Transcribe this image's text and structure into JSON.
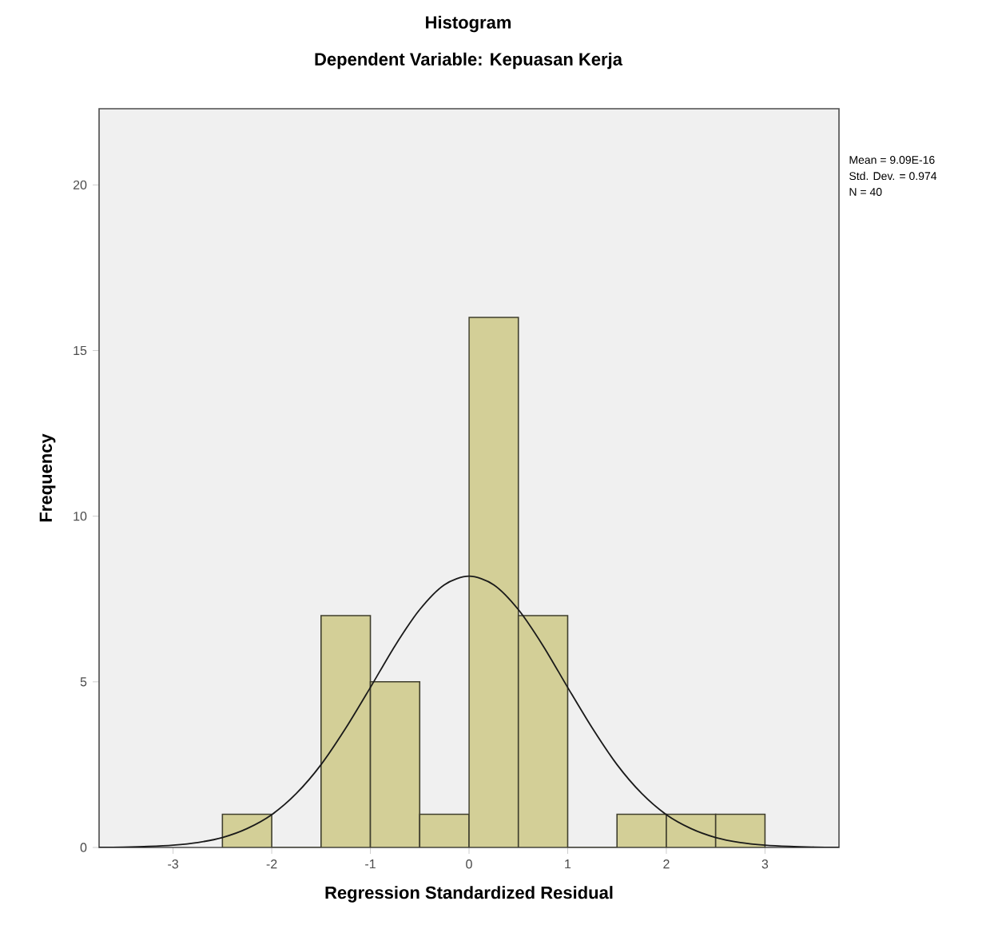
{
  "chart_data": {
    "type": "histogram",
    "title": "Histogram",
    "subtitle": "Dependent Variable: Kepuasan Kerja",
    "xlabel": "Regression Standardized Residual",
    "ylabel": "Frequency",
    "series": [
      {
        "color": "#d3cf97",
        "bins": [
          -2.5,
          -2,
          -1.5,
          -1,
          -0.5,
          0,
          0.5,
          1,
          1.5,
          2,
          2.5,
          3
        ],
        "values": [
          1,
          0,
          7,
          5,
          1,
          16,
          7,
          0,
          1,
          1,
          1
        ]
      },
      {
        "type": "line",
        "color": "#1a1a1a",
        "x": [
          -3.75,
          -3.5,
          -3.25,
          -3,
          -2.75,
          -2.5,
          -2.25,
          -2,
          -1.75,
          -1.5,
          -1.25,
          -1,
          -0.75,
          -0.5,
          -0.25,
          0,
          0.25,
          0.5,
          0.75,
          1,
          1.25,
          1.5,
          1.75,
          2,
          2.25,
          2.5,
          2.75,
          3,
          3.25,
          3.5,
          3.75
        ],
        "values": [
          0,
          0.01,
          0.03,
          0.07,
          0.15,
          0.3,
          0.57,
          0.99,
          1.63,
          2.5,
          3.6,
          4.83,
          6.09,
          7.18,
          7.93,
          8.19,
          7.93,
          7.18,
          6.09,
          4.83,
          3.6,
          2.5,
          1.63,
          0.99,
          0.57,
          0.3,
          0.15,
          0.07,
          0.03,
          0.01,
          0
        ]
      }
    ],
    "xlim": [
      -3.75,
      3.75
    ],
    "ylim": [
      0,
      22.3
    ],
    "xticks": [
      -3,
      -2,
      -1,
      0,
      1,
      2,
      3
    ],
    "yticks": [
      0,
      5,
      10,
      15,
      20
    ],
    "grid": false,
    "annotations": [
      "Mean = 9.09E-16",
      "Std. Dev. = 0.974",
      "N = 40"
    ]
  }
}
